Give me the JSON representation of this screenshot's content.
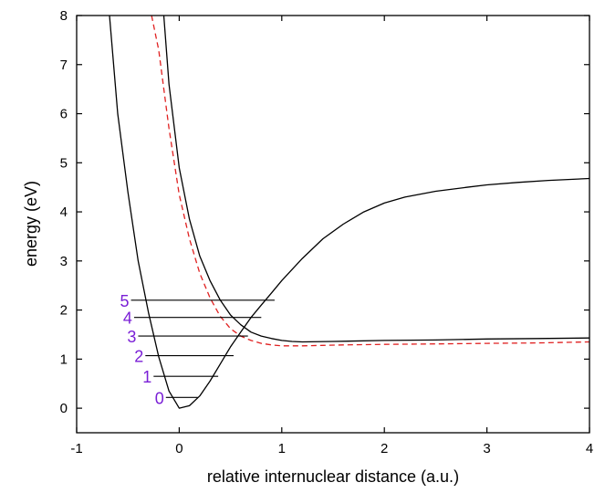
{
  "chart_data": {
    "type": "line",
    "title": "",
    "xlabel": "relative internuclear distance (a.u.)",
    "ylabel": "energy (eV)",
    "xlim": [
      -1,
      4
    ],
    "ylim": [
      -0.5,
      8
    ],
    "x_ticks": [
      -1,
      0,
      1,
      2,
      3,
      4
    ],
    "y_ticks": [
      0,
      1,
      2,
      3,
      4,
      5,
      6,
      7,
      8
    ],
    "grid": false,
    "legend": "none",
    "series": [
      {
        "style": "solid",
        "color": "#000000",
        "x": [
          -0.68,
          -0.6,
          -0.5,
          -0.4,
          -0.3,
          -0.2,
          -0.1,
          0.0,
          0.1,
          0.2,
          0.3,
          0.4,
          0.5,
          0.6,
          0.7,
          0.8,
          0.9,
          1.0,
          1.2,
          1.4,
          1.6,
          1.8,
          2.0,
          2.2,
          2.5,
          2.8,
          3.0,
          3.3,
          3.6,
          4.0
        ],
        "y": [
          8.0,
          6.0,
          4.4,
          3.0,
          1.95,
          1.05,
          0.35,
          0.0,
          0.05,
          0.25,
          0.55,
          0.9,
          1.25,
          1.55,
          1.85,
          2.1,
          2.35,
          2.6,
          3.05,
          3.45,
          3.75,
          4.0,
          4.18,
          4.3,
          4.42,
          4.5,
          4.55,
          4.6,
          4.64,
          4.68
        ]
      },
      {
        "style": "solid",
        "color": "#000000",
        "x": [
          -0.15,
          -0.1,
          0.0,
          0.1,
          0.2,
          0.3,
          0.4,
          0.5,
          0.6,
          0.7,
          0.8,
          0.9,
          1.0,
          1.1,
          1.2,
          1.5,
          2.0,
          2.5,
          3.0,
          3.5,
          4.0
        ],
        "y": [
          8.0,
          6.6,
          4.9,
          3.85,
          3.1,
          2.6,
          2.2,
          1.9,
          1.7,
          1.55,
          1.47,
          1.42,
          1.38,
          1.36,
          1.35,
          1.36,
          1.38,
          1.39,
          1.41,
          1.42,
          1.43
        ]
      },
      {
        "style": "dashed",
        "color": "#e02020",
        "x": [
          -0.27,
          -0.2,
          -0.1,
          0.0,
          0.1,
          0.2,
          0.3,
          0.4,
          0.5,
          0.6,
          0.7,
          0.8,
          0.9,
          1.0,
          1.2,
          1.4,
          1.6,
          2.0,
          2.5,
          3.0,
          3.5,
          4.0
        ],
        "y": [
          8.0,
          7.3,
          5.7,
          4.35,
          3.45,
          2.75,
          2.25,
          1.87,
          1.62,
          1.47,
          1.38,
          1.32,
          1.29,
          1.27,
          1.27,
          1.28,
          1.29,
          1.3,
          1.31,
          1.32,
          1.33,
          1.35
        ]
      }
    ],
    "levels": [
      {
        "label": "0",
        "y": 0.22,
        "x_start": -0.13,
        "x_end": 0.18
      },
      {
        "label": "1",
        "y": 0.65,
        "x_start": -0.25,
        "x_end": 0.38
      },
      {
        "label": "2",
        "y": 1.07,
        "x_start": -0.33,
        "x_end": 0.53
      },
      {
        "label": "3",
        "y": 1.47,
        "x_start": -0.4,
        "x_end": 0.67
      },
      {
        "label": "4",
        "y": 1.85,
        "x_start": -0.44,
        "x_end": 0.8
      },
      {
        "label": "5",
        "y": 2.2,
        "x_start": -0.47,
        "x_end": 0.93
      }
    ]
  }
}
